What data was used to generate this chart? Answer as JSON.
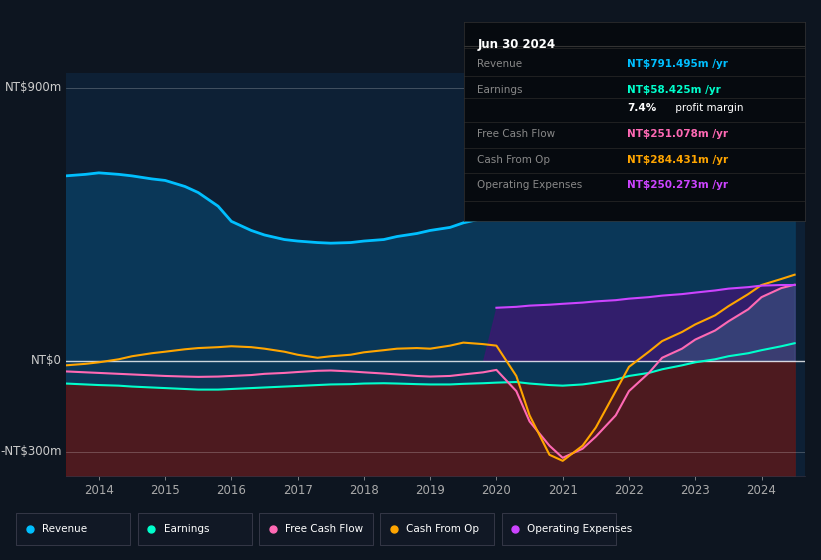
{
  "bg_color": "#0d1520",
  "plot_bg_color": "#0d2035",
  "ylabel_900": "NT$900m",
  "ylabel_0": "NT$0",
  "ylabel_neg300": "-NT$300m",
  "years": [
    2013.5,
    2013.8,
    2014.0,
    2014.3,
    2014.5,
    2014.8,
    2015.0,
    2015.3,
    2015.5,
    2015.8,
    2016.0,
    2016.3,
    2016.5,
    2016.8,
    2017.0,
    2017.3,
    2017.5,
    2017.8,
    2018.0,
    2018.3,
    2018.5,
    2018.8,
    2019.0,
    2019.3,
    2019.5,
    2019.8,
    2020.0,
    2020.3,
    2020.5,
    2020.8,
    2021.0,
    2021.3,
    2021.5,
    2021.8,
    2022.0,
    2022.3,
    2022.5,
    2022.8,
    2023.0,
    2023.3,
    2023.5,
    2023.8,
    2024.0,
    2024.3,
    2024.5
  ],
  "revenue": [
    610,
    615,
    620,
    615,
    610,
    600,
    595,
    575,
    555,
    510,
    460,
    430,
    415,
    400,
    395,
    390,
    388,
    390,
    395,
    400,
    410,
    420,
    430,
    440,
    455,
    470,
    485,
    495,
    510,
    530,
    550,
    570,
    590,
    620,
    660,
    700,
    740,
    770,
    795,
    820,
    840,
    830,
    820,
    800,
    791
  ],
  "earnings": [
    -75,
    -78,
    -80,
    -82,
    -85,
    -88,
    -90,
    -93,
    -95,
    -95,
    -93,
    -90,
    -88,
    -85,
    -83,
    -80,
    -78,
    -77,
    -75,
    -74,
    -75,
    -77,
    -78,
    -78,
    -76,
    -74,
    -72,
    -70,
    -75,
    -80,
    -82,
    -78,
    -72,
    -62,
    -50,
    -40,
    -28,
    -15,
    -5,
    5,
    15,
    25,
    35,
    48,
    58
  ],
  "free_cash_flow": [
    -35,
    -38,
    -40,
    -43,
    -45,
    -48,
    -50,
    -52,
    -53,
    -52,
    -50,
    -47,
    -43,
    -40,
    -37,
    -33,
    -32,
    -35,
    -38,
    -42,
    -45,
    -50,
    -52,
    -50,
    -45,
    -38,
    -30,
    -100,
    -200,
    -280,
    -320,
    -290,
    -250,
    -180,
    -100,
    -40,
    10,
    40,
    70,
    100,
    130,
    170,
    210,
    240,
    251
  ],
  "cash_from_op": [
    -15,
    -10,
    -5,
    5,
    15,
    25,
    30,
    38,
    42,
    45,
    48,
    45,
    40,
    30,
    20,
    10,
    15,
    20,
    28,
    35,
    40,
    42,
    40,
    50,
    60,
    55,
    50,
    -50,
    -180,
    -310,
    -330,
    -280,
    -220,
    -100,
    -20,
    30,
    65,
    95,
    120,
    150,
    180,
    220,
    250,
    270,
    284
  ],
  "operating_expenses": [
    0,
    0,
    0,
    0,
    0,
    0,
    0,
    0,
    0,
    0,
    0,
    0,
    0,
    0,
    0,
    0,
    0,
    0,
    0,
    0,
    0,
    0,
    0,
    0,
    0,
    0,
    175,
    178,
    182,
    185,
    188,
    192,
    196,
    200,
    205,
    210,
    215,
    220,
    225,
    232,
    238,
    243,
    248,
    250,
    250
  ],
  "revenue_color": "#00bfff",
  "earnings_color": "#00ffcc",
  "free_cash_flow_color": "#ff69b4",
  "cash_from_op_color": "#ffa500",
  "operating_expenses_color": "#cc44ff",
  "revenue_fill_color": "#0a3a5c",
  "earnings_fill_color": "#5a1515",
  "operating_expenses_fill_color": "#3a1a70",
  "infobox": {
    "title": "Jun 30 2024",
    "rows": [
      {
        "label": "Revenue",
        "value": "NT$791.495m /yr",
        "value_color": "#00bfff"
      },
      {
        "label": "Earnings",
        "value": "NT$58.425m /yr",
        "value_color": "#00ffcc"
      },
      {
        "label": "",
        "value": "7.4% profit margin",
        "value_color": "#ffffff",
        "bold_part": "7.4%"
      },
      {
        "label": "Free Cash Flow",
        "value": "NT$251.078m /yr",
        "value_color": "#ff69b4"
      },
      {
        "label": "Cash From Op",
        "value": "NT$284.431m /yr",
        "value_color": "#ffa500"
      },
      {
        "label": "Operating Expenses",
        "value": "NT$250.273m /yr",
        "value_color": "#cc44ff"
      }
    ]
  }
}
